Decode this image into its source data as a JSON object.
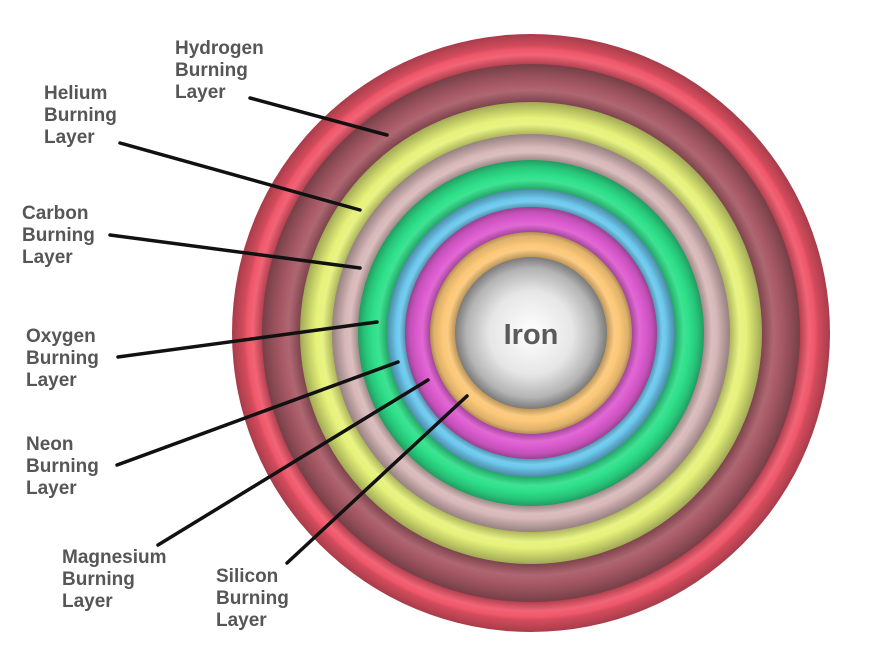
{
  "core": {
    "label": "Iron",
    "color": "#d8d8d8"
  },
  "layers": [
    {
      "name": "Hydrogen Burning Layer",
      "lines": [
        "Hydrogen",
        "Burning",
        "Layer"
      ],
      "color": "#f0566a"
    },
    {
      "name": "Helium Burning Layer",
      "lines": [
        "Helium",
        "Burning",
        "Layer"
      ],
      "color": "#a85a66"
    },
    {
      "name": "Carbon Burning Layer",
      "lines": [
        "Carbon",
        "Burning",
        "Layer"
      ],
      "color": "#e6f27a"
    },
    {
      "name": "Oxygen Burning Layer",
      "lines": [
        "Oxygen",
        "Burning",
        "Layer"
      ],
      "color": "#d8b8b8"
    },
    {
      "name": "Neon Burning Layer",
      "lines": [
        "Neon",
        "Burning",
        "Layer"
      ],
      "color": "#2ee08a"
    },
    {
      "name": "Magnesium Burning Layer",
      "lines": [
        "Magnesium",
        "Burning",
        "Layer"
      ],
      "color": "#6cc8ee"
    },
    {
      "name": "Silicon Burning Layer",
      "lines": [
        "Silicon",
        "Burning",
        "Layer"
      ],
      "color": "#dd5cd0"
    },
    {
      "name": "",
      "lines": [],
      "color": "#fcc878"
    }
  ]
}
